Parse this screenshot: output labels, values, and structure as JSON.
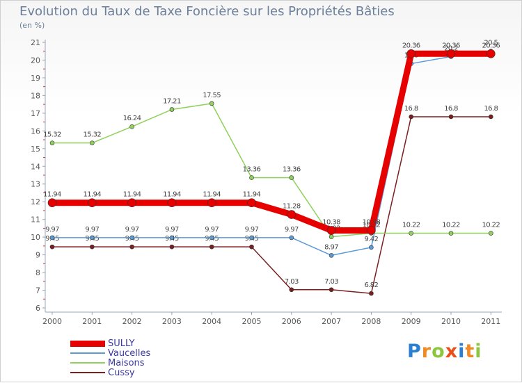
{
  "header": {
    "title": "Evolution du Taux de Taxe Foncière sur les Propriétés Bâties",
    "unit": "(en %)"
  },
  "brand": {
    "letters": [
      "P",
      "r",
      "o",
      "x",
      "i",
      "t",
      "i"
    ],
    "colors": [
      "#2a7fd4",
      "#f08a24",
      "#8cc63f",
      "#e94e1b",
      "#2a7fd4",
      "#f08a24",
      "#8cc63f"
    ]
  },
  "chart_data": {
    "type": "line",
    "title": "Evolution du Taux de Taxe Foncière sur les Propriétés Bâties",
    "ylabel": "(en %)",
    "xlabel": "",
    "x": [
      "2000",
      "2001",
      "2002",
      "2003",
      "2004",
      "2005",
      "2006",
      "2007",
      "2008",
      "2009",
      "2010",
      "2011"
    ],
    "ylim": [
      6,
      21
    ],
    "yticks": [
      6,
      7,
      8,
      9,
      10,
      11,
      12,
      13,
      14,
      15,
      16,
      17,
      18,
      19,
      20,
      21
    ],
    "grid": false,
    "legend_position": "bottom-left",
    "series": [
      {
        "name": "Cussy",
        "color": "#7a1f1f",
        "values": [
          9.45,
          9.45,
          9.45,
          9.45,
          9.45,
          9.45,
          7.03,
          7.03,
          6.82,
          16.8,
          16.8,
          16.8
        ],
        "labels": [
          "9.45",
          "9.45",
          "9.45",
          "9.45",
          "9.45",
          "9.45",
          "7.03",
          "7.03",
          "6.82",
          "16.8",
          "16.8",
          "16.8"
        ]
      },
      {
        "name": "Maisons",
        "color": "#8fd15c",
        "values": [
          15.32,
          15.32,
          16.24,
          17.21,
          17.55,
          13.36,
          13.36,
          10.02,
          10.22,
          10.22,
          10.22,
          10.22
        ],
        "labels": [
          "15.32",
          "15.32",
          "16.24",
          "17.21",
          "17.55",
          "13.36",
          "13.36",
          "10.02",
          "10.22",
          "10.22",
          "10.22",
          "10.22"
        ]
      },
      {
        "name": "Vaucelles",
        "color": "#5b9bd5",
        "values": [
          9.97,
          9.97,
          9.97,
          9.97,
          9.97,
          9.97,
          9.97,
          8.97,
          9.42,
          19.8,
          20.2,
          20.5
        ],
        "labels": [
          "9.97",
          "9.97",
          "9.97",
          "9.97",
          "9.97",
          "9.97",
          "9.97",
          "8.97",
          "9.42",
          "19.8",
          "20.2",
          "20.5"
        ]
      },
      {
        "name": "SULLY",
        "color": "#e60000",
        "values": [
          11.94,
          11.94,
          11.94,
          11.94,
          11.94,
          11.94,
          11.28,
          10.38,
          10.38,
          20.36,
          20.36,
          20.36
        ],
        "labels": [
          "11.94",
          "11.94",
          "11.94",
          "11.94",
          "11.94",
          "11.94",
          "11.28",
          "10.38",
          "10.38",
          "20.36",
          "20.36",
          "20.36"
        ]
      }
    ]
  }
}
